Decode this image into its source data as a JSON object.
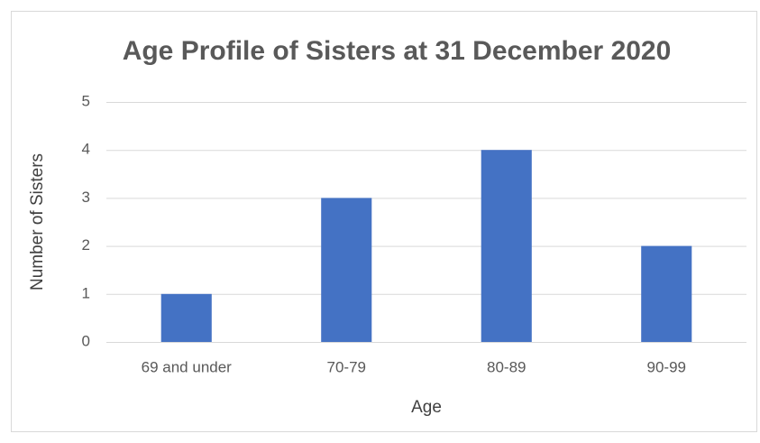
{
  "chart_data": {
    "type": "bar",
    "title": "Age Profile of Sisters at 31 December 2020",
    "x_label": "Age",
    "y_label": "Number of Sisters",
    "categories": [
      "69 and under",
      "70-79",
      "80-89",
      "90-99"
    ],
    "values": [
      1,
      3,
      4,
      2
    ],
    "color": "#4472c4",
    "ylim": [
      0,
      5
    ],
    "yticks": [
      0,
      1,
      2,
      3,
      4,
      5
    ],
    "grid": true
  }
}
